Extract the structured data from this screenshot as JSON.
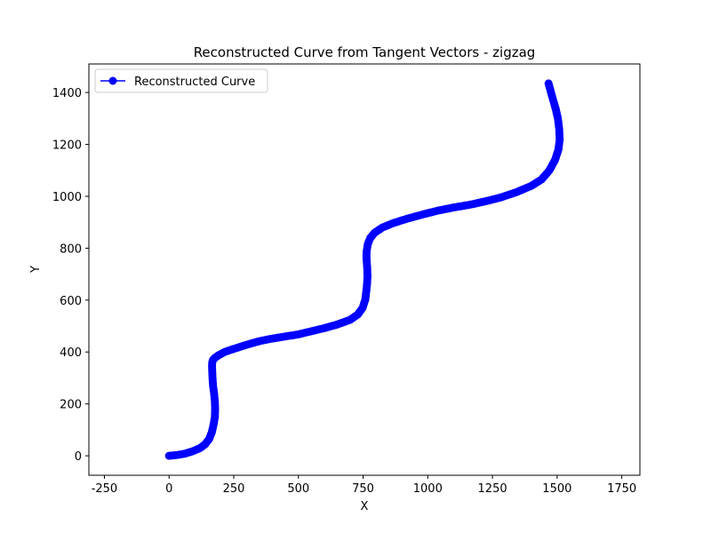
{
  "chart_data": {
    "type": "line",
    "title": "Reconstructed Curve from Tangent Vectors - zigzag",
    "xlabel": "X",
    "ylabel": "Y",
    "xlim": [
      -310,
      1820
    ],
    "ylim": [
      -75,
      1510
    ],
    "xticks": [
      -250,
      0,
      250,
      500,
      750,
      1000,
      1250,
      1500,
      1750
    ],
    "yticks": [
      0,
      200,
      400,
      600,
      800,
      1000,
      1200,
      1400
    ],
    "grid": false,
    "legend_position": "top-left",
    "series": [
      {
        "name": "Reconstructed Curve",
        "color": "#0000ff",
        "marker": "circle",
        "x": [
          0,
          30,
          60,
          90,
          120,
          140,
          155,
          165,
          172,
          177,
          178,
          177,
          174,
          170,
          168,
          167,
          166,
          167,
          170,
          178,
          192,
          215,
          250,
          300,
          350,
          400,
          450,
          500,
          550,
          600,
          650,
          700,
          730,
          748,
          758,
          762,
          765,
          767,
          766,
          764,
          763,
          764,
          768,
          778,
          795,
          825,
          870,
          925,
          980,
          1040,
          1100,
          1160,
          1220,
          1280,
          1340,
          1400,
          1440,
          1470,
          1492,
          1505,
          1510,
          1508,
          1503,
          1495,
          1485,
          1475,
          1467
        ],
        "y": [
          0,
          3,
          8,
          17,
          30,
          45,
          65,
          90,
          120,
          150,
          180,
          210,
          240,
          270,
          300,
          325,
          345,
          360,
          370,
          378,
          388,
          400,
          412,
          428,
          442,
          452,
          460,
          468,
          480,
          492,
          506,
          524,
          545,
          570,
          600,
          630,
          660,
          690,
          720,
          750,
          770,
          790,
          815,
          840,
          860,
          880,
          898,
          915,
          930,
          945,
          957,
          967,
          980,
          995,
          1015,
          1040,
          1065,
          1100,
          1140,
          1180,
          1220,
          1260,
          1300,
          1335,
          1370,
          1405,
          1435
        ]
      }
    ]
  }
}
